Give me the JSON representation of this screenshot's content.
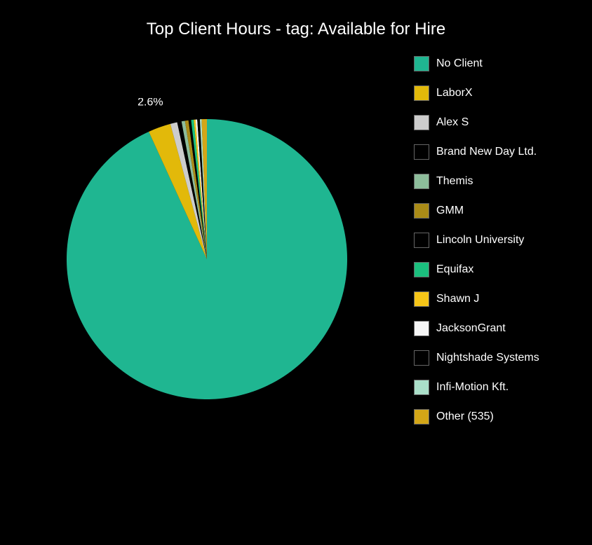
{
  "chart": {
    "type": "pie",
    "title": "Top Client Hours - tag: Available for Hire",
    "background_color": "#000000",
    "title_color": "#ffffff",
    "title_fontsize": 24,
    "legend_text_color": "#ffffff",
    "legend_fontsize": 16,
    "slices": [
      {
        "label": "No Client",
        "value": 93.2,
        "color": "#1fb691",
        "show_percent": false
      },
      {
        "label": "LaborX",
        "value": 2.6,
        "color": "#e2b90a",
        "show_percent": true,
        "percent_text": "2.6%"
      },
      {
        "label": "Alex S",
        "value": 0.8,
        "color": "#cccccc",
        "show_percent": false
      },
      {
        "label": "Brand New Day Ltd.",
        "value": 0.5,
        "color": "#000000",
        "show_percent": false
      },
      {
        "label": "Themis",
        "value": 0.4,
        "color": "#8dbd9b",
        "show_percent": false
      },
      {
        "label": "GMM",
        "value": 0.4,
        "color": "#aa8b17",
        "show_percent": false
      },
      {
        "label": "Lincoln University",
        "value": 0.3,
        "color": "#000000",
        "show_percent": false
      },
      {
        "label": "Equifax",
        "value": 0.3,
        "color": "#1bbf7e",
        "show_percent": false
      },
      {
        "label": "Shawn J",
        "value": 0.2,
        "color": "#f5c518",
        "show_percent": false
      },
      {
        "label": "JacksonGrant",
        "value": 0.2,
        "color": "#f5f5f5",
        "show_percent": false
      },
      {
        "label": "Nightshade Systems",
        "value": 0.3,
        "color": "#000000",
        "show_percent": false
      },
      {
        "label": "Infi-Motion Kft.",
        "value": 0.2,
        "color": "#aadfc9",
        "show_percent": false
      },
      {
        "label": "Other (535)",
        "value": 0.6,
        "color": "#d3a617",
        "show_percent": false
      }
    ],
    "percent_label_color": "#ffffff",
    "percent_label_fontsize": 16
  }
}
